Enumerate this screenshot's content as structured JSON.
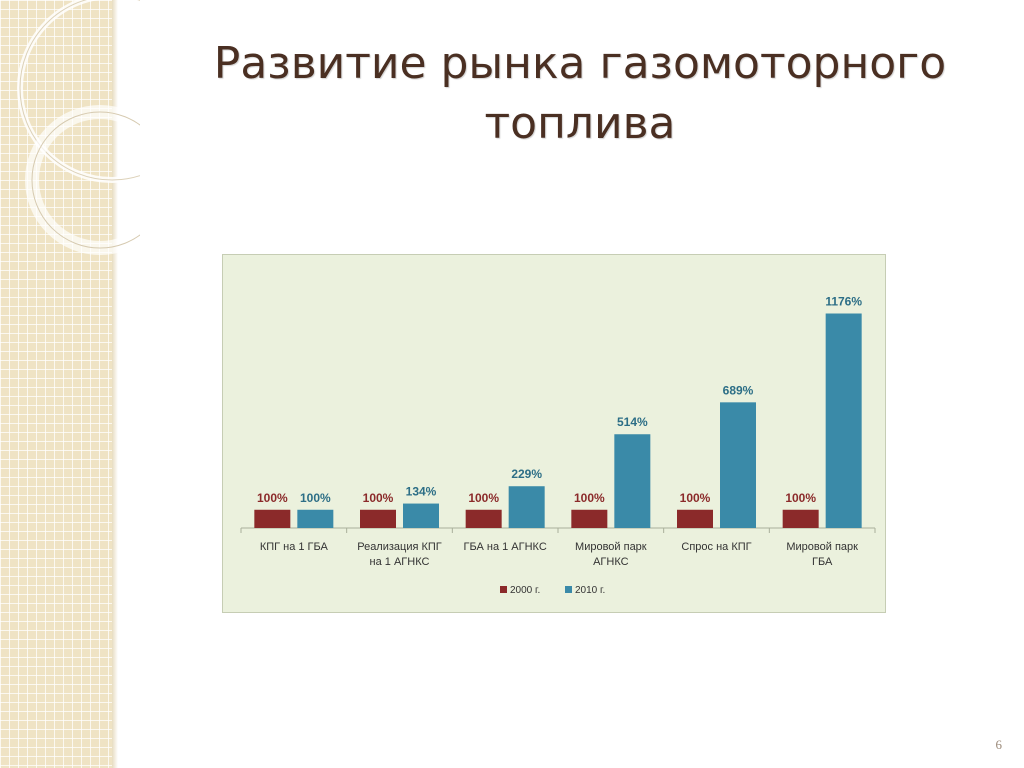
{
  "slide": {
    "title_lines": [
      "Развитие рынка газомоторного",
      "топлива"
    ],
    "page_number": "6"
  },
  "colors": {
    "series_2000": "#8b2a2a",
    "series_2010": "#3a8aa8",
    "chart_background": "#ebf1dd",
    "title": "#4a2f22"
  },
  "chart_data": {
    "type": "bar",
    "title": "",
    "xlabel": "",
    "ylabel": "",
    "ylim": [
      0,
      1250
    ],
    "grid": false,
    "legend": "bottom",
    "categories": [
      [
        "КПГ на 1 ГБА"
      ],
      [
        "Реализация КПГ",
        "на 1 АГНКС"
      ],
      [
        "ГБА на 1 АГНКС"
      ],
      [
        "Мировой парк",
        "АГНКС"
      ],
      [
        "Спрос на КПГ"
      ],
      [
        "Мировой парк",
        "ГБА"
      ]
    ],
    "series": [
      {
        "name": "2000 г.",
        "values": [
          100,
          100,
          100,
          100,
          100,
          100
        ],
        "labels": [
          "100%",
          "100%",
          "100%",
          "100%",
          "100%",
          "100%"
        ]
      },
      {
        "name": "2010 г.",
        "values": [
          100,
          134,
          229,
          514,
          689,
          1176
        ],
        "labels": [
          "100%",
          "134%",
          "229%",
          "514%",
          "689%",
          "1176%"
        ]
      }
    ]
  }
}
